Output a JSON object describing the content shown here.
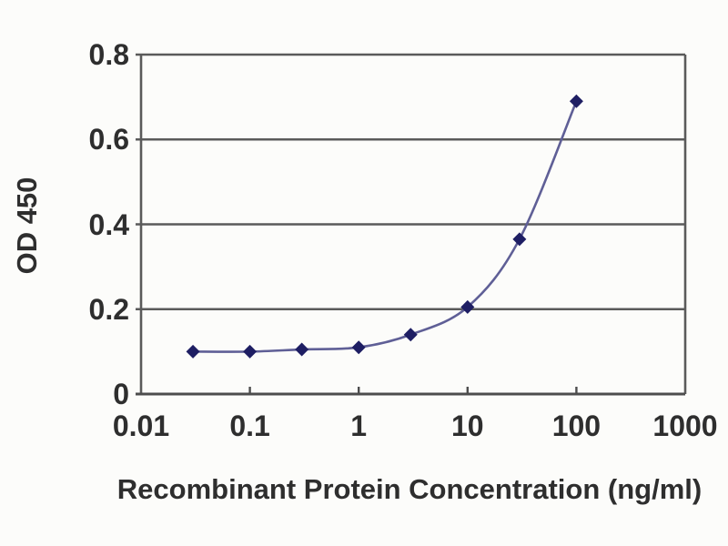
{
  "figure": {
    "background_color": "#fcfcfa",
    "text_color": "#2e2e2e",
    "grid_color": "#5a5a5a",
    "axis_color": "#4d4d4d",
    "line_color": "#5f5f96",
    "marker_color": "#1e1e63"
  },
  "chart_data": {
    "type": "line",
    "title": "",
    "xlabel": "Recombinant Protein Concentration (ng/ml)",
    "ylabel": "OD 450",
    "x_scale": "log",
    "xlim": [
      0.01,
      1000
    ],
    "ylim": [
      0,
      0.8
    ],
    "x_ticks": [
      {
        "value": 0.01,
        "label": "0.01"
      },
      {
        "value": 0.1,
        "label": "0.1"
      },
      {
        "value": 1,
        "label": "1"
      },
      {
        "value": 10,
        "label": "10"
      },
      {
        "value": 100,
        "label": "100"
      },
      {
        "value": 1000,
        "label": "1000"
      }
    ],
    "y_ticks": [
      {
        "value": 0,
        "label": "0"
      },
      {
        "value": 0.2,
        "label": "0.2"
      },
      {
        "value": 0.4,
        "label": "0.4"
      },
      {
        "value": 0.6,
        "label": "0.6"
      },
      {
        "value": 0.8,
        "label": "0.8"
      }
    ],
    "grid": "horizontal",
    "legend": "none",
    "marker": "diamond",
    "series": [
      {
        "name": "OD 450",
        "x": [
          0.03,
          0.1,
          0.3,
          1,
          3,
          10,
          30,
          100
        ],
        "y": [
          0.1,
          0.1,
          0.105,
          0.11,
          0.14,
          0.205,
          0.365,
          0.69
        ]
      }
    ]
  }
}
